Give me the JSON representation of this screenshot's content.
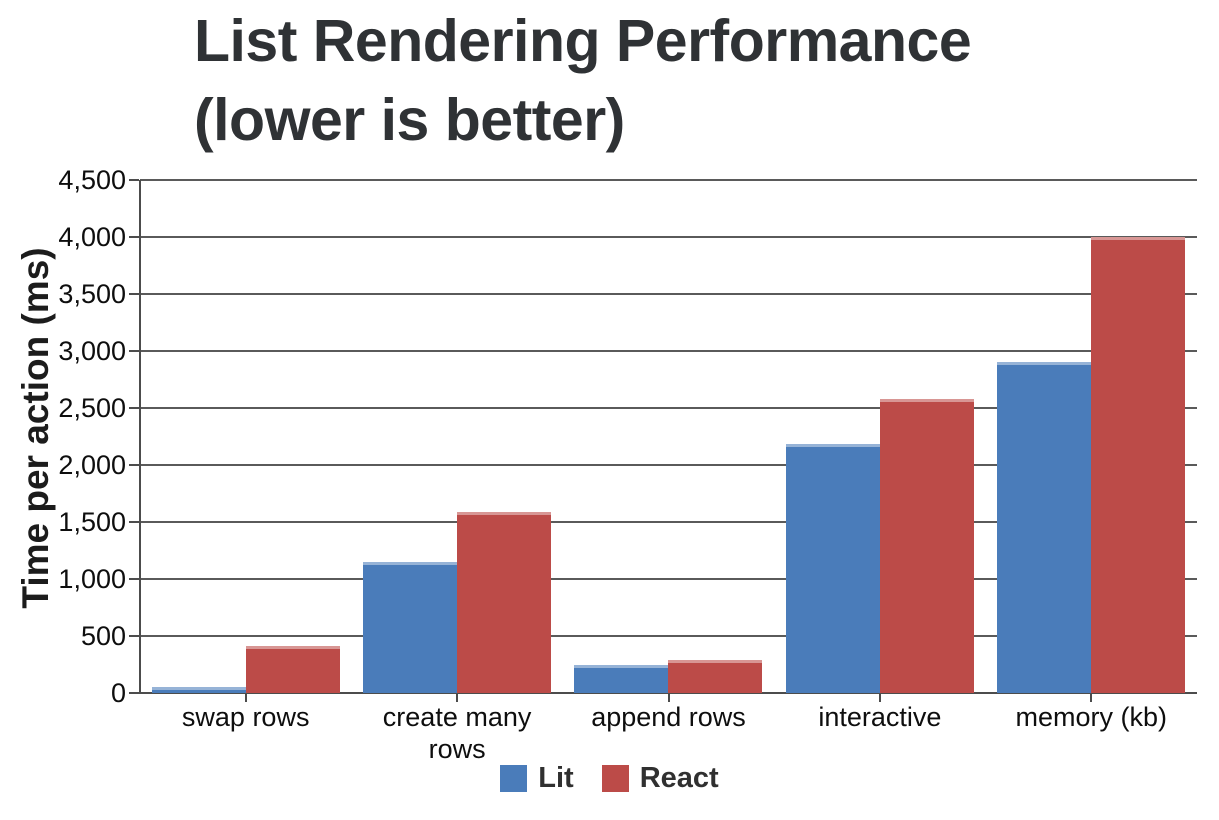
{
  "chart_data": {
    "type": "bar",
    "title": "List Rendering Performance (lower is better)",
    "title_lines": [
      "List Rendering Performance",
      "(lower is better)"
    ],
    "xlabel": "",
    "ylabel": "Time per action (ms)",
    "categories": [
      "swap rows",
      "create many rows",
      "append rows",
      "interactive",
      "memory (kb)"
    ],
    "series": [
      {
        "name": "Lit",
        "color": "#4a7cba",
        "values": [
          50,
          1150,
          250,
          2180,
          2900
        ]
      },
      {
        "name": "React",
        "color": "#bc4b48",
        "values": [
          410,
          1590,
          290,
          2580,
          4000
        ]
      }
    ],
    "ylim": [
      0,
      4500
    ],
    "ytick_step": 500,
    "ytick_labels": [
      "0",
      "500",
      "1,000",
      "1,500",
      "2,000",
      "2,500",
      "3,000",
      "3,500",
      "4,000",
      "4,500"
    ],
    "grid": true,
    "legend_position": "bottom"
  },
  "colors": {
    "gridline": "#5a5a5a",
    "axis": "#4c4c4c",
    "title_text": "#2f3235",
    "label_text": "#0e0e0e"
  }
}
